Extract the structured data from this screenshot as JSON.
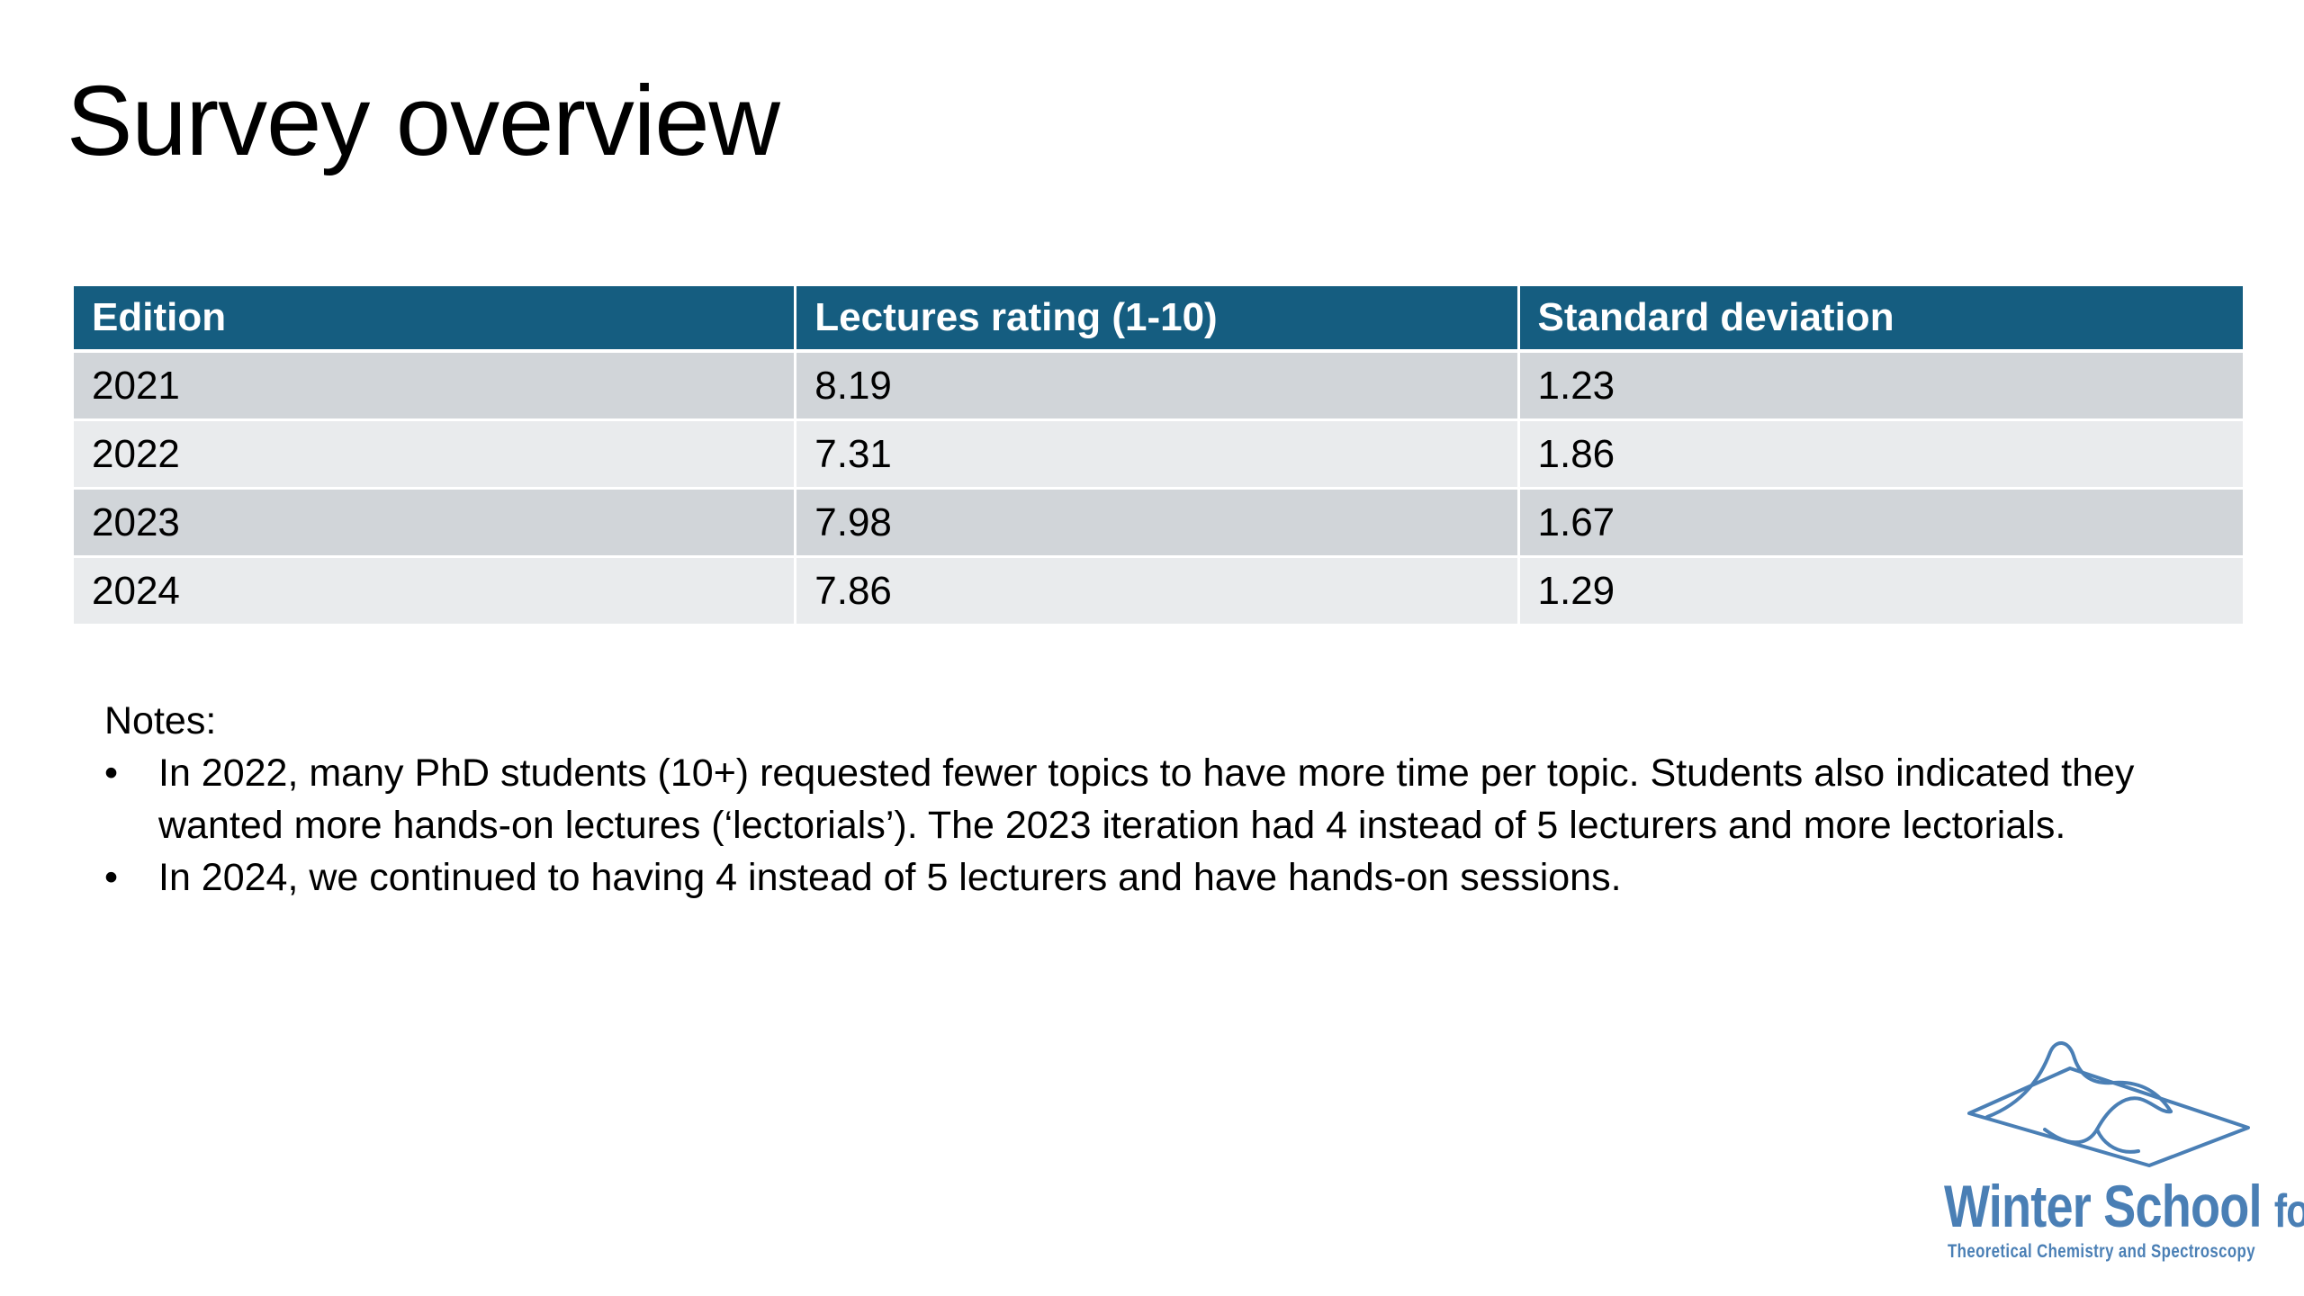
{
  "title": "Survey overview",
  "table": {
    "headers": [
      "Edition",
      "Lectures rating (1-10)",
      "Standard deviation"
    ],
    "rows": [
      [
        "2021",
        "8.19",
        "1.23"
      ],
      [
        "2022",
        "7.31",
        "1.86"
      ],
      [
        "2023",
        "7.98",
        "1.67"
      ],
      [
        "2024",
        "7.86",
        "1.29"
      ]
    ]
  },
  "notes": {
    "heading": "Notes:",
    "bullet_symbol": "•",
    "items": [
      "In 2022, many PhD students (10+) requested fewer topics to have more time per topic. Students also indicated they wanted more hands-on lectures (‘lectorials’). The 2023 iteration had 4 instead of 5 lecturers and more lectorials.",
      "In 2024, we continued to having 4 instead of 5 lecturers and have hands-on sessions."
    ]
  },
  "logo": {
    "name": "Winter School",
    "name_suffix": "for",
    "subtitle": "Theoretical Chemistry and Spectroscopy",
    "icon": "potential-energy-surface-icon"
  },
  "colors": {
    "header_background": "#155d80",
    "row_odd": "#d1d5d9",
    "row_even": "#e9ebed",
    "logo_blue": "#4a7fb5"
  }
}
